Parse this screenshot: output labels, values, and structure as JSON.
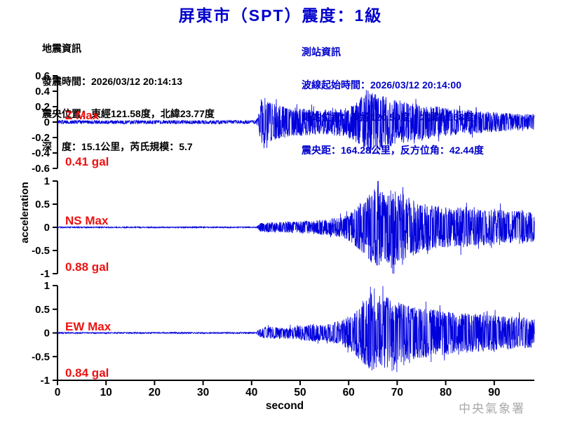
{
  "title": "屏東市（SPT）震度：1級",
  "watermark": "中央氣象署",
  "earthquake_info": {
    "lines": [
      "地震資訊",
      "發震時間：2026/03/12 20:14:13",
      "震央位置：東經121.58度，北緯23.77度",
      "深　度：15.1公里，芮氏規模：5.7"
    ]
  },
  "station_info": {
    "lines": [
      "測站資訊",
      "波線起始時間：2026/03/12 20:14:00",
      "測站位置：東經120.50度，北緯22.68度",
      "震央距：164.28公里，反方位角：42.44度"
    ]
  },
  "colors": {
    "title_blue": "#0000CC",
    "station_info_blue": "#0000CC",
    "trace_blue": "#0000DD",
    "max_label_red": "#EE1111",
    "axis_black": "#000000",
    "watermark_gray": "#AAAAAA"
  },
  "chart_data": {
    "type": "line",
    "xlabel": "second",
    "ylabel": "acceleration",
    "x_ticks": [
      0,
      10,
      20,
      30,
      40,
      50,
      60,
      70,
      80,
      90
    ],
    "x_range": [
      0,
      98.3
    ],
    "grid": false,
    "panels": [
      {
        "channel": "Z",
        "max_label": "Z Max",
        "max_value": "0.41 gal",
        "max_gal": 0.41,
        "ylim": [
          -0.6,
          0.6
        ],
        "yticks": [
          0.6,
          0.4,
          0.2,
          0,
          -0.2,
          -0.4,
          -0.6
        ],
        "noise_level": 0.022,
        "p_arrival_s": 41.5,
        "s_arrival_s": 62,
        "peak_pos": {
          "t": 64.0,
          "v": 0.41
        },
        "peak_neg": {
          "t": 65.9,
          "v": -0.4
        },
        "envelope": [
          [
            0,
            0.022
          ],
          [
            40.8,
            0.022
          ],
          [
            41.3,
            0.06
          ],
          [
            42,
            0.3
          ],
          [
            43.5,
            0.26
          ],
          [
            46,
            0.21
          ],
          [
            50,
            0.18
          ],
          [
            54,
            0.16
          ],
          [
            58,
            0.18
          ],
          [
            61,
            0.24
          ],
          [
            63,
            0.34
          ],
          [
            64.5,
            0.41
          ],
          [
            66,
            0.37
          ],
          [
            68,
            0.32
          ],
          [
            70,
            0.29
          ],
          [
            73,
            0.25
          ],
          [
            76,
            0.22
          ],
          [
            80,
            0.19
          ],
          [
            84,
            0.16
          ],
          [
            88,
            0.14
          ],
          [
            92,
            0.12
          ],
          [
            98.3,
            0.1
          ]
        ]
      },
      {
        "channel": "NS",
        "max_label": "NS Max",
        "max_value": "0.88 gal",
        "max_gal": 0.88,
        "ylim": [
          -1,
          1
        ],
        "yticks": [
          1,
          0.5,
          0,
          -0.5,
          -1
        ],
        "noise_level": 0.012,
        "p_arrival_s": 41.5,
        "s_arrival_s": 62,
        "peak_pos": {
          "t": 65.3,
          "v": 0.82
        },
        "peak_neg": {
          "t": 68.8,
          "v": -0.88
        },
        "envelope": [
          [
            0,
            0.012
          ],
          [
            41,
            0.012
          ],
          [
            41.8,
            0.09
          ],
          [
            44,
            0.11
          ],
          [
            48,
            0.12
          ],
          [
            52,
            0.14
          ],
          [
            55,
            0.17
          ],
          [
            58,
            0.21
          ],
          [
            60,
            0.28
          ],
          [
            62,
            0.48
          ],
          [
            64,
            0.72
          ],
          [
            65.5,
            0.86
          ],
          [
            67,
            0.78
          ],
          [
            69,
            0.85
          ],
          [
            71,
            0.72
          ],
          [
            73,
            0.62
          ],
          [
            75,
            0.55
          ],
          [
            78,
            0.47
          ],
          [
            81,
            0.42
          ],
          [
            84,
            0.45
          ],
          [
            87,
            0.38
          ],
          [
            90,
            0.42
          ],
          [
            93,
            0.34
          ],
          [
            96,
            0.37
          ],
          [
            98.3,
            0.3
          ]
        ]
      },
      {
        "channel": "EW",
        "max_label": "EW Max",
        "max_value": "0.84 gal",
        "max_gal": 0.84,
        "ylim": [
          -1,
          1
        ],
        "yticks": [
          1,
          0.5,
          0,
          -0.5,
          -1
        ],
        "noise_level": 0.014,
        "p_arrival_s": 41.5,
        "s_arrival_s": 62,
        "peak_pos": {
          "t": 64.6,
          "v": 0.84
        },
        "peak_neg": {
          "t": 69.3,
          "v": -0.78
        },
        "envelope": [
          [
            0,
            0.014
          ],
          [
            41,
            0.014
          ],
          [
            41.8,
            0.1
          ],
          [
            44,
            0.13
          ],
          [
            47,
            0.12
          ],
          [
            50,
            0.15
          ],
          [
            53,
            0.19
          ],
          [
            55,
            0.16
          ],
          [
            57,
            0.22
          ],
          [
            59,
            0.3
          ],
          [
            61,
            0.42
          ],
          [
            63,
            0.65
          ],
          [
            64.5,
            0.82
          ],
          [
            66,
            0.72
          ],
          [
            68,
            0.76
          ],
          [
            70,
            0.66
          ],
          [
            72,
            0.58
          ],
          [
            75,
            0.53
          ],
          [
            78,
            0.49
          ],
          [
            81,
            0.45
          ],
          [
            84,
            0.42
          ],
          [
            87,
            0.4
          ],
          [
            90,
            0.37
          ],
          [
            93,
            0.35
          ],
          [
            96,
            0.33
          ],
          [
            98.3,
            0.3
          ]
        ]
      }
    ]
  }
}
